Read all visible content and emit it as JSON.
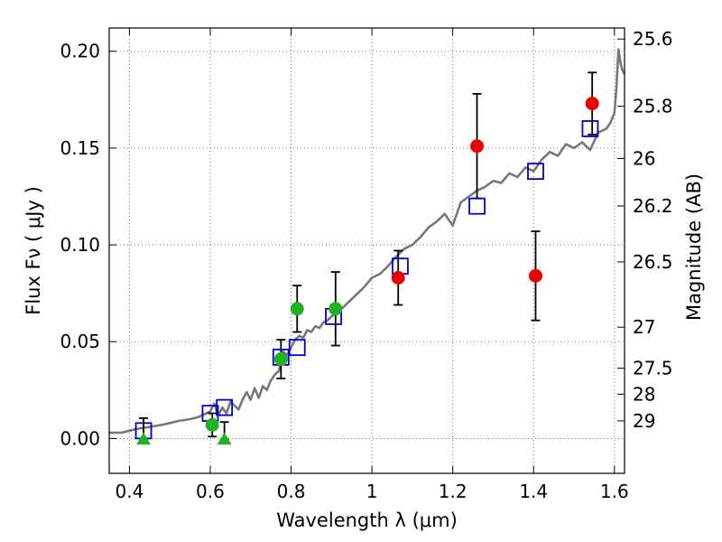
{
  "chart_data": {
    "type": "scatter",
    "xlabel": "Wavelength  λ (μm)",
    "ylabel": "Flux  Fν  ( μJy )",
    "y2label": "Magnitude (AB)",
    "xlim": [
      0.35,
      1.625
    ],
    "ylim": [
      -0.018,
      0.212
    ],
    "grid": true,
    "x_ticks": [
      {
        "value": 0.4,
        "label": "0.4"
      },
      {
        "value": 0.6,
        "label": "0.6"
      },
      {
        "value": 0.8,
        "label": "0.8"
      },
      {
        "value": 1.0,
        "label": "1"
      },
      {
        "value": 1.2,
        "label": "1.2"
      },
      {
        "value": 1.4,
        "label": "1.4"
      },
      {
        "value": 1.6,
        "label": "1.6"
      }
    ],
    "y_ticks": [
      {
        "value": 0.0,
        "label": "0.00"
      },
      {
        "value": 0.05,
        "label": "0.05"
      },
      {
        "value": 0.1,
        "label": "0.10"
      },
      {
        "value": 0.15,
        "label": "0.15"
      },
      {
        "value": 0.2,
        "label": "0.20"
      }
    ],
    "y2_ticks": [
      {
        "flux": 0.2063,
        "label": "25.6"
      },
      {
        "flux": 0.1716,
        "label": "25.8"
      },
      {
        "flux": 0.1446,
        "label": "26"
      },
      {
        "flux": 0.1201,
        "label": "26.2"
      },
      {
        "flux": 0.0912,
        "label": "26.5"
      },
      {
        "flux": 0.0575,
        "label": "27"
      },
      {
        "flux": 0.0363,
        "label": "27.5"
      },
      {
        "flux": 0.0229,
        "label": "28"
      },
      {
        "flux": 0.0091,
        "label": "29"
      }
    ],
    "model_spectrum": {
      "color": "#777777",
      "x": [
        0.35,
        0.38,
        0.4,
        0.42,
        0.45,
        0.48,
        0.5,
        0.52,
        0.55,
        0.57,
        0.59,
        0.6,
        0.61,
        0.62,
        0.63,
        0.64,
        0.65,
        0.66,
        0.67,
        0.68,
        0.69,
        0.7,
        0.71,
        0.72,
        0.73,
        0.74,
        0.75,
        0.76,
        0.77,
        0.78,
        0.79,
        0.8,
        0.81,
        0.82,
        0.83,
        0.84,
        0.85,
        0.86,
        0.87,
        0.88,
        0.89,
        0.9,
        0.92,
        0.94,
        0.96,
        0.98,
        1.0,
        1.02,
        1.04,
        1.06,
        1.08,
        1.1,
        1.12,
        1.14,
        1.16,
        1.18,
        1.2,
        1.22,
        1.24,
        1.26,
        1.28,
        1.3,
        1.32,
        1.34,
        1.36,
        1.38,
        1.4,
        1.42,
        1.44,
        1.46,
        1.48,
        1.5,
        1.52,
        1.54,
        1.56,
        1.58,
        1.59,
        1.6,
        1.605,
        1.61,
        1.615,
        1.62,
        1.625
      ],
      "y": [
        0.003,
        0.003,
        0.004,
        0.005,
        0.006,
        0.007,
        0.008,
        0.009,
        0.01,
        0.011,
        0.013,
        0.014,
        0.018,
        0.012,
        0.016,
        0.013,
        0.019,
        0.017,
        0.015,
        0.02,
        0.024,
        0.02,
        0.026,
        0.021,
        0.027,
        0.025,
        0.03,
        0.033,
        0.035,
        0.045,
        0.043,
        0.047,
        0.051,
        0.053,
        0.052,
        0.056,
        0.055,
        0.058,
        0.057,
        0.06,
        0.061,
        0.063,
        0.066,
        0.07,
        0.074,
        0.078,
        0.083,
        0.085,
        0.089,
        0.094,
        0.098,
        0.1,
        0.104,
        0.109,
        0.112,
        0.116,
        0.11,
        0.122,
        0.125,
        0.128,
        0.13,
        0.133,
        0.132,
        0.137,
        0.135,
        0.14,
        0.138,
        0.144,
        0.148,
        0.146,
        0.152,
        0.15,
        0.153,
        0.149,
        0.158,
        0.16,
        0.163,
        0.168,
        0.181,
        0.201,
        0.194,
        0.19,
        0.188
      ]
    },
    "series": [
      {
        "marker": "open-square",
        "color": "#0000cc",
        "points": [
          {
            "x": 0.435,
            "y": 0.004
          },
          {
            "x": 0.6,
            "y": 0.013
          },
          {
            "x": 0.635,
            "y": 0.016
          },
          {
            "x": 0.775,
            "y": 0.042
          },
          {
            "x": 0.815,
            "y": 0.047
          },
          {
            "x": 0.905,
            "y": 0.063
          },
          {
            "x": 1.07,
            "y": 0.089
          },
          {
            "x": 1.26,
            "y": 0.12
          },
          {
            "x": 1.405,
            "y": 0.138
          },
          {
            "x": 1.54,
            "y": 0.16
          }
        ]
      },
      {
        "marker": "filled-circle",
        "color": "#1fb41f",
        "points": [
          {
            "x": 0.605,
            "y": 0.007,
            "err": 0.006
          },
          {
            "x": 0.775,
            "y": 0.041,
            "err": 0.01
          },
          {
            "x": 0.815,
            "y": 0.067,
            "err": 0.012
          },
          {
            "x": 0.91,
            "y": 0.067,
            "err": 0.019
          }
        ]
      },
      {
        "marker": "filled-triangle",
        "color": "#1fb41f",
        "points": [
          {
            "x": 0.435,
            "y": -0.0005,
            "err_low": 0.0,
            "err_high": 0.011
          },
          {
            "x": 0.635,
            "y": -0.0005,
            "err_low": 0.0,
            "err_high": 0.009
          }
        ]
      },
      {
        "marker": "filled-circle",
        "color": "#ee0000",
        "points": [
          {
            "x": 1.065,
            "y": 0.083,
            "err": 0.014
          },
          {
            "x": 1.26,
            "y": 0.151,
            "err": 0.027
          },
          {
            "x": 1.405,
            "y": 0.084,
            "err": 0.023
          },
          {
            "x": 1.545,
            "y": 0.173,
            "err": 0.016
          }
        ]
      }
    ]
  }
}
